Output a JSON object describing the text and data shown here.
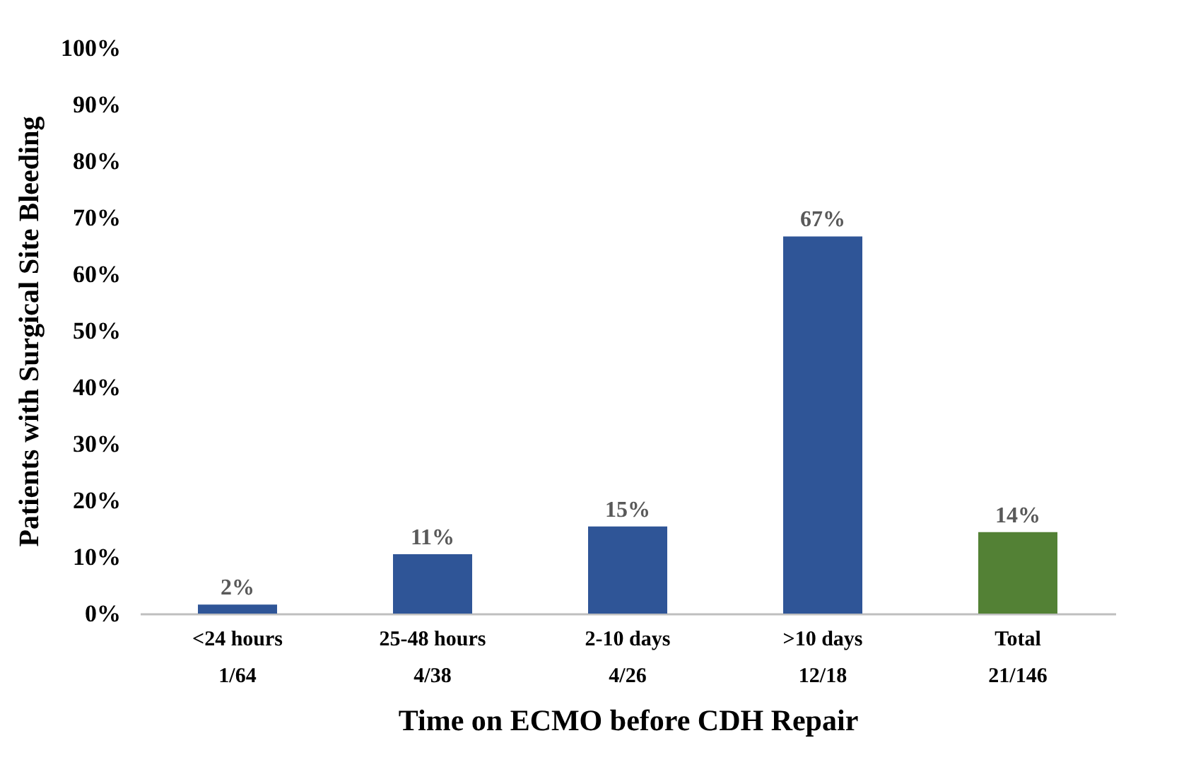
{
  "chart_data": {
    "type": "bar",
    "xlabel": "Time on ECMO before CDH Repair",
    "ylabel": "Patients with Surgical Site Bleeding",
    "categories": [
      "<24 hours\n1/64",
      "25-48 hours\n4/38",
      "2-10 days\n4/26",
      ">10 days\n12/18",
      "Total\n21/146"
    ],
    "values": [
      1.6,
      10.5,
      15.4,
      66.7,
      14.4
    ],
    "value_labels": [
      "2%",
      "11%",
      "15%",
      "67%",
      "14%"
    ],
    "colors": [
      "#2f5597",
      "#2f5597",
      "#2f5597",
      "#2f5597",
      "#538135"
    ],
    "ylim": [
      0,
      100
    ],
    "yticks": [
      {
        "value": 0,
        "label": "0%"
      },
      {
        "value": 10,
        "label": "10%"
      },
      {
        "value": 20,
        "label": "20%"
      },
      {
        "value": 30,
        "label": "30%"
      },
      {
        "value": 40,
        "label": "40%"
      },
      {
        "value": 50,
        "label": "50%"
      },
      {
        "value": 60,
        "label": "60%"
      },
      {
        "value": 70,
        "label": "70%"
      },
      {
        "value": 80,
        "label": "80%"
      },
      {
        "value": 90,
        "label": "90%"
      },
      {
        "value": 100,
        "label": "100%"
      }
    ],
    "grid": false
  }
}
